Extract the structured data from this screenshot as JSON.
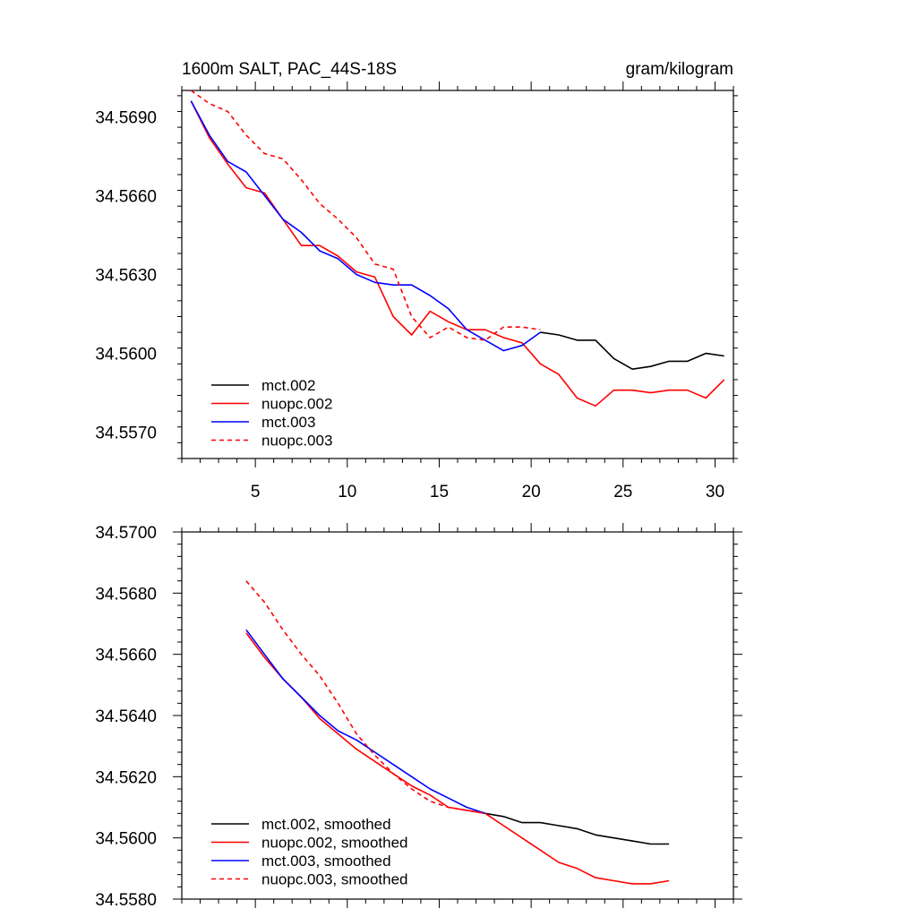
{
  "chart_data": [
    {
      "type": "line",
      "title": "1600m SALT, PAC_44S-18S",
      "units": "gram/kilogram",
      "xlim": [
        1,
        31
      ],
      "ylim": [
        34.556,
        34.57
      ],
      "xticks": [
        5,
        10,
        15,
        20,
        25,
        30
      ],
      "yticks": [
        34.557,
        34.56,
        34.563,
        34.566,
        34.569
      ],
      "ytick_labels": [
        "34.5570",
        "34.5600",
        "34.5630",
        "34.5660",
        "34.5690"
      ],
      "legend_position": "bottom-left",
      "series": [
        {
          "name": "mct.002",
          "color": "#000000",
          "dash": "solid",
          "x": [
            20.5,
            21.5,
            22.5,
            23.5,
            24.5,
            25.5,
            26.5,
            27.5,
            28.5,
            29.5,
            30.5
          ],
          "values": [
            34.5608,
            34.5607,
            34.5605,
            34.5605,
            34.5598,
            34.5594,
            34.5595,
            34.5597,
            34.5597,
            34.56,
            34.5599
          ]
        },
        {
          "name": "nuopc.002",
          "color": "#ff0000",
          "dash": "solid",
          "x": [
            1.5,
            2.5,
            3.5,
            4.5,
            5.5,
            6.5,
            7.5,
            8.5,
            9.5,
            10.5,
            11.5,
            12.5,
            13.5,
            14.5,
            15.5,
            16.5,
            17.5,
            18.5,
            19.5,
            20.5,
            21.5,
            22.5,
            23.5,
            24.5,
            25.5,
            26.5,
            27.5,
            28.5,
            29.5,
            30.5
          ],
          "values": [
            34.5696,
            34.5682,
            34.5672,
            34.5663,
            34.5661,
            34.5651,
            34.5641,
            34.5641,
            34.5637,
            34.5631,
            34.5629,
            34.5614,
            34.5607,
            34.5616,
            34.5612,
            34.5609,
            34.5609,
            34.5606,
            34.5604,
            34.5596,
            34.5592,
            34.5583,
            34.558,
            34.5586,
            34.5586,
            34.5585,
            34.5586,
            34.5586,
            34.5583,
            34.559
          ]
        },
        {
          "name": "mct.003",
          "color": "#0000ff",
          "dash": "solid",
          "x": [
            1.5,
            2.5,
            3.5,
            4.5,
            5.5,
            6.5,
            7.5,
            8.5,
            9.5,
            10.5,
            11.5,
            12.5,
            13.5,
            14.5,
            15.5,
            16.5,
            17.5,
            18.5,
            19.5,
            20.5
          ],
          "values": [
            34.5696,
            34.5683,
            34.5673,
            34.5669,
            34.566,
            34.5651,
            34.5646,
            34.5639,
            34.5636,
            34.563,
            34.5627,
            34.5626,
            34.5626,
            34.5622,
            34.5617,
            34.5609,
            34.5605,
            34.5601,
            34.5603,
            34.5608
          ]
        },
        {
          "name": "nuopc.003",
          "color": "#ff0000",
          "dash": "dashed",
          "x": [
            1.5,
            2.5,
            3.5,
            4.5,
            5.5,
            6.5,
            7.5,
            8.5,
            9.5,
            10.5,
            11.5,
            12.5,
            13.5,
            14.5,
            15.5,
            16.5,
            17.5,
            18.5,
            19.5,
            20.5
          ],
          "values": [
            34.57,
            34.5695,
            34.5692,
            34.5683,
            34.5676,
            34.5674,
            34.5666,
            34.5657,
            34.5651,
            34.5644,
            34.5634,
            34.5632,
            34.5614,
            34.5606,
            34.561,
            34.5606,
            34.5605,
            34.561,
            34.561,
            34.5609
          ]
        }
      ]
    },
    {
      "type": "line",
      "xlim": [
        1,
        31
      ],
      "ylim": [
        34.558,
        34.57
      ],
      "xticks": [
        5,
        10,
        15,
        20,
        25,
        30
      ],
      "yticks": [
        34.558,
        34.56,
        34.562,
        34.564,
        34.566,
        34.568,
        34.57
      ],
      "ytick_labels": [
        "34.5580",
        "34.5600",
        "34.5620",
        "34.5640",
        "34.5660",
        "34.5680",
        "34.5700"
      ],
      "legend_position": "bottom-left",
      "series": [
        {
          "name": "mct.002, smoothed",
          "color": "#000000",
          "dash": "solid",
          "x": [
            17.5,
            18.5,
            19.5,
            20.5,
            21.5,
            22.5,
            23.5,
            24.5,
            25.5,
            26.5,
            27.5
          ],
          "values": [
            34.5608,
            34.5607,
            34.5605,
            34.5605,
            34.5604,
            34.5603,
            34.5601,
            34.56,
            34.5599,
            34.5598,
            34.5598
          ]
        },
        {
          "name": "nuopc.002, smoothed",
          "color": "#ff0000",
          "dash": "solid",
          "x": [
            4.5,
            5.5,
            6.5,
            7.5,
            8.5,
            9.5,
            10.5,
            11.5,
            12.5,
            13.5,
            14.5,
            15.5,
            16.5,
            17.5,
            18.5,
            19.5,
            20.5,
            21.5,
            22.5,
            23.5,
            24.5,
            25.5,
            26.5,
            27.5
          ],
          "values": [
            34.5667,
            34.5659,
            34.5652,
            34.5646,
            34.5639,
            34.5634,
            34.5629,
            34.5625,
            34.5621,
            34.5617,
            34.5614,
            34.561,
            34.5609,
            34.5608,
            34.5604,
            34.56,
            34.5596,
            34.5592,
            34.559,
            34.5587,
            34.5586,
            34.5585,
            34.5585,
            34.5586
          ]
        },
        {
          "name": "mct.003, smoothed",
          "color": "#0000ff",
          "dash": "solid",
          "x": [
            4.5,
            5.5,
            6.5,
            7.5,
            8.5,
            9.5,
            10.5,
            11.5,
            12.5,
            13.5,
            14.5,
            15.5,
            16.5,
            17.5
          ],
          "values": [
            34.5668,
            34.566,
            34.5652,
            34.5646,
            34.564,
            34.5635,
            34.5632,
            34.5628,
            34.5624,
            34.562,
            34.5616,
            34.5613,
            34.561,
            34.5608
          ]
        },
        {
          "name": "nuopc.003, smoothed",
          "color": "#ff0000",
          "dash": "dashed",
          "x": [
            4.5,
            5.5,
            6.5,
            7.5,
            8.5,
            9.5,
            10.5,
            11.5,
            12.5,
            13.5,
            14.5,
            15.5,
            16.5,
            17.5
          ],
          "values": [
            34.5684,
            34.5677,
            34.5668,
            34.566,
            34.5653,
            34.5644,
            34.5634,
            34.5627,
            34.5621,
            34.5616,
            34.5612,
            34.561,
            34.5609,
            34.5608
          ]
        }
      ]
    }
  ]
}
